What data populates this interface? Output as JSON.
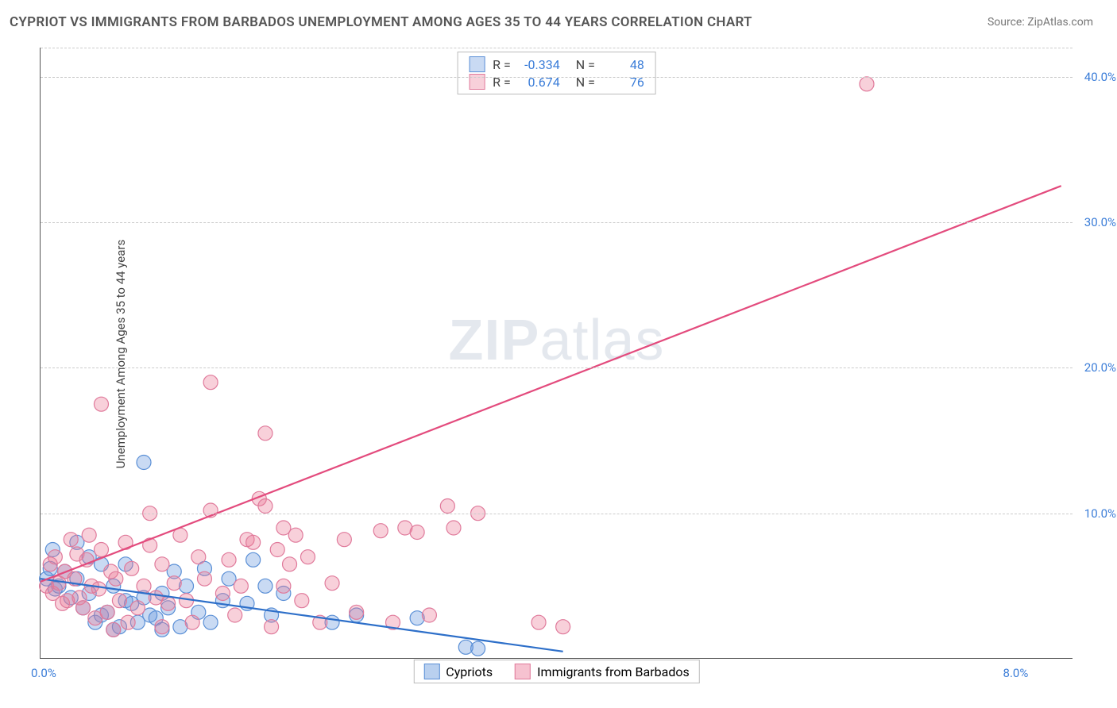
{
  "title": "CYPRIOT VS IMMIGRANTS FROM BARBADOS UNEMPLOYMENT AMONG AGES 35 TO 44 YEARS CORRELATION CHART",
  "source": "Source: ZipAtlas.com",
  "y_axis_label": "Unemployment Among Ages 35 to 44 years",
  "watermark": "ZIPatlas",
  "chart": {
    "type": "scatter-correlation",
    "background_color": "#ffffff",
    "grid_color": "#cccccc",
    "xlim": [
      0,
      8.5
    ],
    "ylim": [
      0,
      42
    ],
    "x_ticks": [
      {
        "v": 0,
        "label": "0.0%"
      },
      {
        "v": 8,
        "label": "8.0%"
      }
    ],
    "y_ticks": [
      {
        "v": 10,
        "label": "10.0%"
      },
      {
        "v": 20,
        "label": "20.0%"
      },
      {
        "v": 30,
        "label": "30.0%"
      },
      {
        "v": 40,
        "label": "40.0%"
      }
    ],
    "tick_color": "#3b7dd8",
    "series": [
      {
        "name": "Cypriots",
        "marker_fill": "rgba(100,150,220,0.35)",
        "marker_stroke": "#5a8fd6",
        "line_color": "#2d6fc9",
        "r_value": "-0.334",
        "n_value": "48",
        "regression": {
          "x1": 0,
          "y1": 5.5,
          "x2": 4.3,
          "y2": 0.5
        },
        "points": [
          [
            0.05,
            5.5
          ],
          [
            0.08,
            6.2
          ],
          [
            0.12,
            4.8
          ],
          [
            0.1,
            7.5
          ],
          [
            0.15,
            5.0
          ],
          [
            0.2,
            6.0
          ],
          [
            0.25,
            4.2
          ],
          [
            0.3,
            8.0
          ],
          [
            0.3,
            5.5
          ],
          [
            0.35,
            3.5
          ],
          [
            0.4,
            7.0
          ],
          [
            0.4,
            4.5
          ],
          [
            0.45,
            2.5
          ],
          [
            0.5,
            3.0
          ],
          [
            0.5,
            6.5
          ],
          [
            0.55,
            3.2
          ],
          [
            0.6,
            2.0
          ],
          [
            0.6,
            5.0
          ],
          [
            0.65,
            2.2
          ],
          [
            0.7,
            4.0
          ],
          [
            0.7,
            6.5
          ],
          [
            0.75,
            3.8
          ],
          [
            0.8,
            2.5
          ],
          [
            0.85,
            4.2
          ],
          [
            0.9,
            3.0
          ],
          [
            0.85,
            13.5
          ],
          [
            0.95,
            2.8
          ],
          [
            1.0,
            4.5
          ],
          [
            1.0,
            2.0
          ],
          [
            1.05,
            3.5
          ],
          [
            1.1,
            6.0
          ],
          [
            1.15,
            2.2
          ],
          [
            1.2,
            5.0
          ],
          [
            1.3,
            3.2
          ],
          [
            1.35,
            6.2
          ],
          [
            1.4,
            2.5
          ],
          [
            1.5,
            4.0
          ],
          [
            1.55,
            5.5
          ],
          [
            1.7,
            3.8
          ],
          [
            1.75,
            6.8
          ],
          [
            1.85,
            5.0
          ],
          [
            1.9,
            3.0
          ],
          [
            2.0,
            4.5
          ],
          [
            2.4,
            2.5
          ],
          [
            2.6,
            3.0
          ],
          [
            3.1,
            2.8
          ],
          [
            3.5,
            0.8
          ],
          [
            3.6,
            0.7
          ]
        ]
      },
      {
        "name": "Immigrants from Barbados",
        "marker_fill": "rgba(235,120,150,0.35)",
        "marker_stroke": "#e07a9b",
        "line_color": "#e34b7d",
        "r_value": "0.674",
        "n_value": "76",
        "regression": {
          "x1": 0,
          "y1": 5.3,
          "x2": 8.4,
          "y2": 32.5
        },
        "points": [
          [
            0.05,
            5.0
          ],
          [
            0.08,
            6.5
          ],
          [
            0.1,
            4.5
          ],
          [
            0.12,
            7.0
          ],
          [
            0.15,
            5.2
          ],
          [
            0.18,
            3.8
          ],
          [
            0.2,
            6.0
          ],
          [
            0.22,
            4.0
          ],
          [
            0.25,
            8.2
          ],
          [
            0.28,
            5.5
          ],
          [
            0.3,
            7.2
          ],
          [
            0.32,
            4.2
          ],
          [
            0.35,
            3.5
          ],
          [
            0.38,
            6.8
          ],
          [
            0.4,
            8.5
          ],
          [
            0.42,
            5.0
          ],
          [
            0.45,
            2.8
          ],
          [
            0.48,
            4.8
          ],
          [
            0.5,
            7.5
          ],
          [
            0.5,
            17.5
          ],
          [
            0.55,
            3.2
          ],
          [
            0.58,
            6.0
          ],
          [
            0.6,
            2.0
          ],
          [
            0.62,
            5.5
          ],
          [
            0.65,
            4.0
          ],
          [
            0.7,
            8.0
          ],
          [
            0.72,
            2.5
          ],
          [
            0.75,
            6.2
          ],
          [
            0.8,
            3.5
          ],
          [
            0.85,
            5.0
          ],
          [
            0.9,
            7.8
          ],
          [
            0.9,
            10.0
          ],
          [
            0.95,
            4.2
          ],
          [
            1.0,
            2.2
          ],
          [
            1.0,
            6.5
          ],
          [
            1.05,
            3.8
          ],
          [
            1.1,
            5.2
          ],
          [
            1.15,
            8.5
          ],
          [
            1.2,
            4.0
          ],
          [
            1.25,
            2.5
          ],
          [
            1.3,
            7.0
          ],
          [
            1.35,
            5.5
          ],
          [
            1.4,
            10.2
          ],
          [
            1.4,
            19.0
          ],
          [
            1.5,
            4.5
          ],
          [
            1.55,
            6.8
          ],
          [
            1.6,
            3.0
          ],
          [
            1.65,
            5.0
          ],
          [
            1.7,
            8.2
          ],
          [
            1.75,
            8.0
          ],
          [
            1.8,
            11.0
          ],
          [
            1.85,
            10.5
          ],
          [
            1.85,
            15.5
          ],
          [
            1.9,
            2.2
          ],
          [
            1.95,
            7.5
          ],
          [
            2.0,
            5.0
          ],
          [
            2.0,
            9.0
          ],
          [
            2.05,
            6.5
          ],
          [
            2.1,
            8.5
          ],
          [
            2.15,
            4.0
          ],
          [
            2.2,
            7.0
          ],
          [
            2.3,
            2.5
          ],
          [
            2.4,
            5.2
          ],
          [
            2.5,
            8.2
          ],
          [
            2.6,
            3.2
          ],
          [
            2.8,
            8.8
          ],
          [
            2.9,
            2.5
          ],
          [
            3.0,
            9.0
          ],
          [
            3.1,
            8.7
          ],
          [
            3.2,
            3.0
          ],
          [
            3.35,
            10.5
          ],
          [
            3.4,
            9.0
          ],
          [
            3.6,
            10.0
          ],
          [
            4.1,
            2.5
          ],
          [
            4.3,
            2.2
          ],
          [
            6.8,
            39.5
          ]
        ]
      }
    ]
  },
  "stats_box": {
    "r_label": "R =",
    "n_label": "N ="
  },
  "legend": {
    "items": [
      {
        "label": "Cypriots",
        "fill": "rgba(100,150,220,0.45)",
        "stroke": "#5a8fd6"
      },
      {
        "label": "Immigrants from Barbados",
        "fill": "rgba(235,120,150,0.45)",
        "stroke": "#e07a9b"
      }
    ]
  }
}
